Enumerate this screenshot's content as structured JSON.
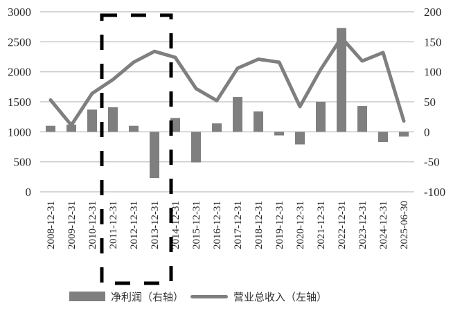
{
  "chart_data": {
    "type": "bar+line",
    "title": "",
    "categories": [
      "2008-12-31",
      "2009-12-31",
      "2010-12-31",
      "2011-12-31",
      "2012-12-31",
      "2013-12-31",
      "2014-12-31",
      "2015-12-31",
      "2016-12-31",
      "2017-12-31",
      "2018-12-31",
      "2019-12-31",
      "2020-12-31",
      "2021-12-31",
      "2022-12-31",
      "2023-12-31",
      "2024-12-31",
      "2025-06-30"
    ],
    "series": [
      {
        "name": "净利润（右轴）",
        "type": "bar",
        "axis": "right",
        "color": "#7f7f7f",
        "values": [
          10,
          12,
          37,
          41,
          10,
          -77,
          23,
          -51,
          14,
          58,
          34,
          -6,
          -21,
          50,
          173,
          43,
          -17,
          -8
        ]
      },
      {
        "name": "营业总收入（左轴）",
        "type": "line",
        "axis": "left",
        "color": "#7f7f7f",
        "values": [
          1530,
          1110,
          1640,
          1870,
          2160,
          2340,
          2240,
          1720,
          1520,
          2060,
          2210,
          2160,
          1420,
          2040,
          2570,
          2180,
          2320,
          1180
        ]
      }
    ],
    "left_axis": {
      "label": "",
      "ylim": [
        0,
        3000
      ],
      "ticks": [
        "0",
        "500",
        "1000",
        "1500",
        "2000",
        "2500",
        "3000"
      ]
    },
    "right_axis": {
      "label": "",
      "ylim": [
        -100,
        200
      ],
      "ticks": [
        "-100",
        "-50",
        "0",
        "50",
        "100",
        "150",
        "200"
      ]
    },
    "xlabel": "",
    "grid": true,
    "legend_position": "bottom",
    "annotations": [
      {
        "type": "dashed-rectangle",
        "color": "#000000",
        "from_category": "2011-12-31",
        "to_category": "2014-12-31",
        "note": "highlight box spanning roughly 2010.5–2013.5 region"
      }
    ]
  },
  "legend": {
    "bar_label": "净利润（右轴）",
    "line_label": "营业总收入（左轴）"
  }
}
